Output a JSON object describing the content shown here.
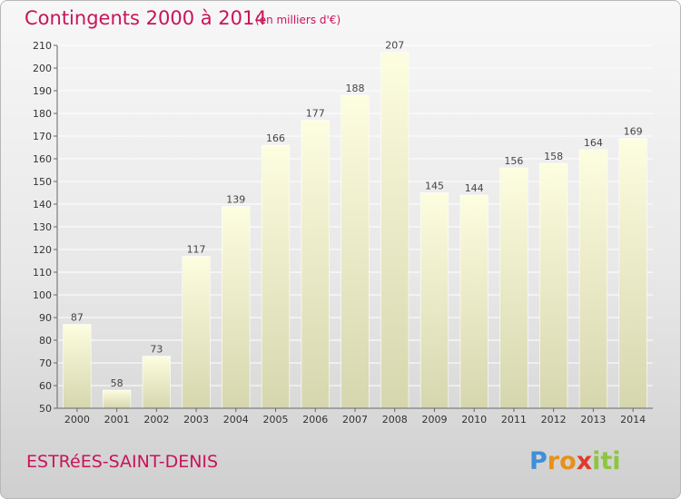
{
  "header": {
    "title": "Contingents 2000 à 2014",
    "unit": "(en milliers d'€)"
  },
  "footer": {
    "commune": "ESTRéES-SAINT-DENIS",
    "logo": {
      "letters": [
        "P",
        "r",
        "o",
        "x",
        "i",
        "t",
        "i"
      ],
      "colors": [
        "#3f8fd8",
        "#e8901a",
        "#e8901a",
        "#e23a2a",
        "#8cc63f",
        "#8cc63f",
        "#8cc63f"
      ]
    }
  },
  "colors": {
    "title": "#c8145a",
    "bar_top": "#fdfde0",
    "bar_bottom": "#d6d6ae",
    "grid": "#ffffff"
  },
  "chart_data": {
    "type": "bar",
    "title": "Contingents 2000 à 2014",
    "subtitle": "(en milliers d'€)",
    "categories": [
      "2000",
      "2001",
      "2002",
      "2003",
      "2004",
      "2005",
      "2006",
      "2007",
      "2008",
      "2009",
      "2010",
      "2011",
      "2012",
      "2013",
      "2014"
    ],
    "values": [
      87,
      58,
      73,
      117,
      139,
      166,
      177,
      188,
      207,
      145,
      144,
      156,
      158,
      164,
      169
    ],
    "xlabel": "",
    "ylabel": "",
    "ylim": [
      50,
      210
    ],
    "yticks": [
      50,
      60,
      70,
      80,
      90,
      100,
      110,
      120,
      130,
      140,
      150,
      160,
      170,
      180,
      190,
      200,
      210
    ],
    "grid": true,
    "legend": "none"
  }
}
